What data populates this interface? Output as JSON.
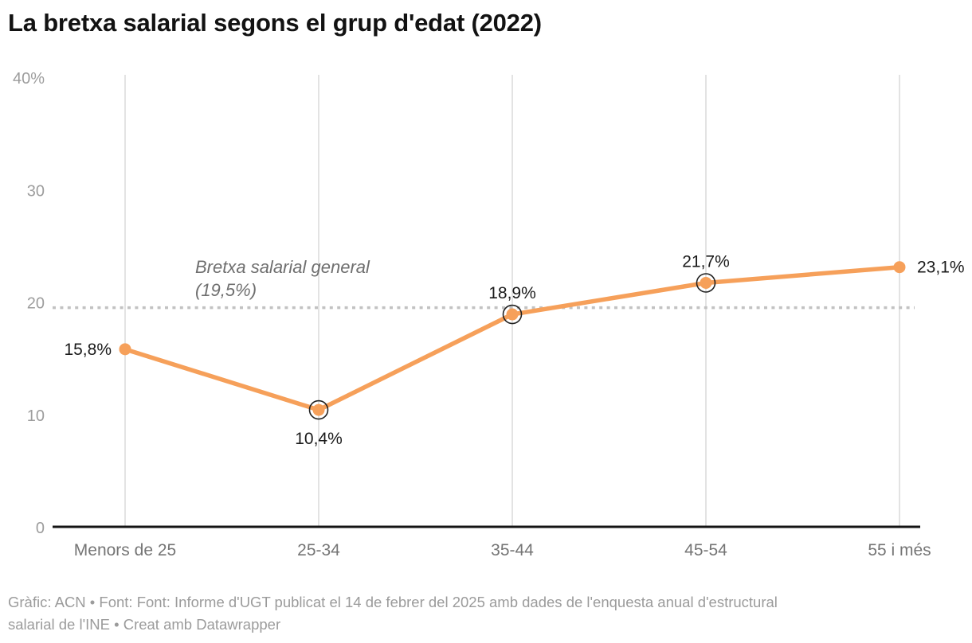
{
  "header": {
    "title": "La bretxa salarial segons el grup d'edat (2022)"
  },
  "chart_data": {
    "type": "line",
    "title": "La bretxa salarial segons el grup d'edat (2022)",
    "categories": [
      "Menors de 25",
      "25-34",
      "35-44",
      "45-54",
      "55 i més"
    ],
    "series": [
      {
        "name": "Bretxa salarial",
        "values": [
          15.8,
          10.4,
          18.9,
          21.7,
          23.1
        ]
      }
    ],
    "point_labels": [
      "15,8%",
      "10,4%",
      "18,9%",
      "21,7%",
      "23,1%"
    ],
    "point_label_positions": [
      "left",
      "below",
      "above",
      "above",
      "right"
    ],
    "circled_point_indexes": [
      1,
      2,
      3
    ],
    "reference_line": {
      "value": 19.5,
      "annotation_lines": [
        "Bretxa salarial general",
        "(19,5%)"
      ]
    },
    "y_axis": {
      "range": [
        0,
        40
      ],
      "ticks": [
        {
          "value": 0,
          "label": "0"
        },
        {
          "value": 10,
          "label": "10"
        },
        {
          "value": 20,
          "label": "20"
        },
        {
          "value": 30,
          "label": "30"
        },
        {
          "value": 40,
          "label": "40%"
        }
      ]
    },
    "grid": "vertical",
    "legend": "none",
    "colors": {
      "line": "#F6A05A",
      "point": "#F6A05A",
      "point_ring": "#222222",
      "point_label": "#1a1a1a",
      "grid_line": "#e3e3e3",
      "baseline": "#141414",
      "reference_line": "#c2c2c2",
      "annotation_text": "#6f6f6f",
      "y_tick_text": "#9d9d9d",
      "category_text": "#757575"
    }
  },
  "footer": {
    "lines": [
      "Gràfic: ACN • Font: Font: Informe d'UGT publicat el 14 de febrer del 2025 amb dades de l'enquesta anual d'estructural",
      "salarial de l'INE • Creat amb Datawrapper"
    ]
  }
}
